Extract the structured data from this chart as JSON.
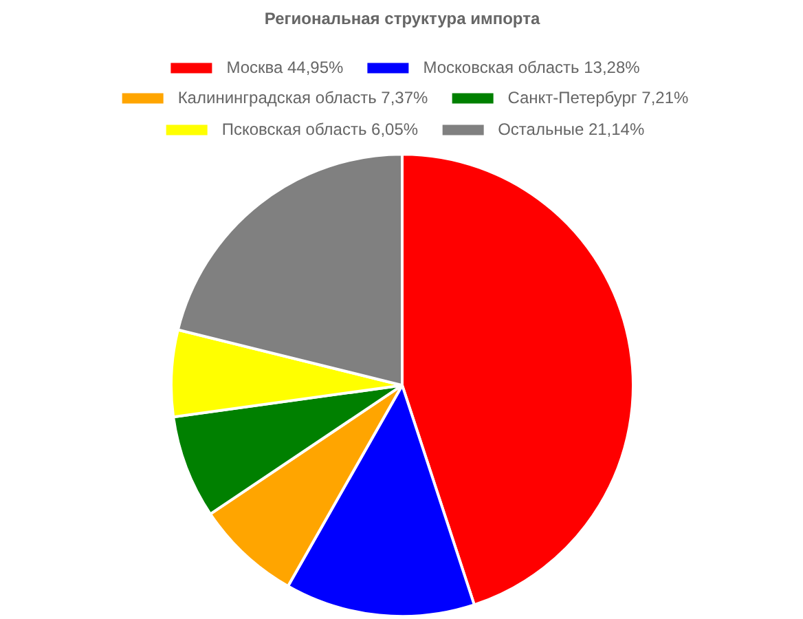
{
  "chart_data": {
    "type": "pie",
    "title": "Региональная структура импорта",
    "categories": [
      "Москва",
      "Московская область",
      "Калининградская область",
      "Санкт-Петербург",
      "Псковская область",
      "Остальные"
    ],
    "values": [
      44.95,
      13.28,
      7.37,
      7.21,
      6.05,
      21.14
    ],
    "value_labels": [
      "44,95%",
      "13,28%",
      "7,37%",
      "7,21%",
      "6,05%",
      "21,14%"
    ],
    "colors": [
      "#ff0000",
      "#0000ff",
      "#ffa500",
      "#008000",
      "#ffff00",
      "#808080"
    ],
    "legend": "top"
  }
}
